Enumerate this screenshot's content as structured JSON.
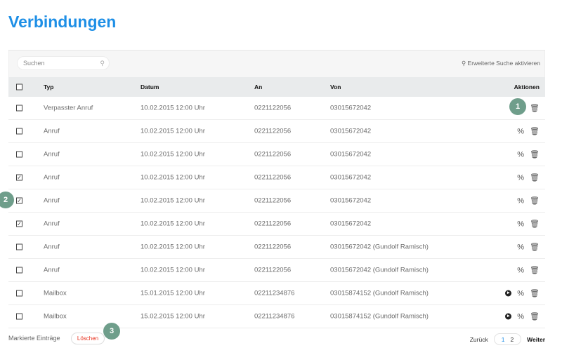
{
  "title": "Verbindungen",
  "search": {
    "placeholder": "Suchen",
    "icon": "search-icon"
  },
  "advanced_search": "Erweiterte Suche aktivieren",
  "columns": {
    "typ": "Typ",
    "datum": "Datum",
    "an": "An",
    "von": "Von",
    "aktionen": "Aktionen"
  },
  "rows": [
    {
      "typ": "Verpasster Anruf",
      "datum": "10.02.2015 12:00 Uhr",
      "an": "0221122056",
      "von": "03015672042",
      "checked": false,
      "play": false,
      "forward": false
    },
    {
      "typ": "Anruf",
      "datum": "10.02.2015 12:00 Uhr",
      "an": "0221122056",
      "von": "03015672042",
      "checked": false,
      "play": false,
      "forward": true
    },
    {
      "typ": "Anruf",
      "datum": "10.02.2015 12:00 Uhr",
      "an": "0221122056",
      "von": "03015672042",
      "checked": false,
      "play": false,
      "forward": true
    },
    {
      "typ": "Anruf",
      "datum": "10.02.2015 12:00 Uhr",
      "an": "0221122056",
      "von": "03015672042",
      "checked": true,
      "play": false,
      "forward": true
    },
    {
      "typ": "Anruf",
      "datum": "10.02.2015 12:00 Uhr",
      "an": "0221122056",
      "von": "03015672042",
      "checked": true,
      "play": false,
      "forward": true
    },
    {
      "typ": "Anruf",
      "datum": "10.02.2015 12:00 Uhr",
      "an": "0221122056",
      "von": "03015672042",
      "checked": true,
      "play": false,
      "forward": true
    },
    {
      "typ": "Anruf",
      "datum": "10.02.2015 12:00 Uhr",
      "an": "0221122056",
      "von": "03015672042 (Gundolf Ramisch)",
      "checked": false,
      "play": false,
      "forward": true
    },
    {
      "typ": "Anruf",
      "datum": "10.02.2015 12:00 Uhr",
      "an": "0221122056",
      "von": "03015672042 (Gundolf Ramisch)",
      "checked": false,
      "play": false,
      "forward": true
    },
    {
      "typ": "Mailbox",
      "datum": "15.01.2015 12:00 Uhr",
      "an": "02211234876",
      "von": "03015874152 (Gundolf Ramisch)",
      "checked": false,
      "play": true,
      "forward": true
    },
    {
      "typ": "Mailbox",
      "datum": "15.02.2015 12:00 Uhr",
      "an": "02211234876",
      "von": "03015874152 (Gundolf Ramisch)",
      "checked": false,
      "play": true,
      "forward": true
    }
  ],
  "footer": {
    "marked_label": "Markierte Einträge",
    "delete_label": "Löschen"
  },
  "pagination": {
    "prev": "Zurück",
    "pages": [
      "1",
      "2"
    ],
    "current": "1",
    "next": "Weiter"
  },
  "badges": [
    "1",
    "2",
    "3"
  ],
  "colors": {
    "accent": "#1e8fe6",
    "danger": "#e8321f",
    "badge": "#6f9e8b"
  }
}
